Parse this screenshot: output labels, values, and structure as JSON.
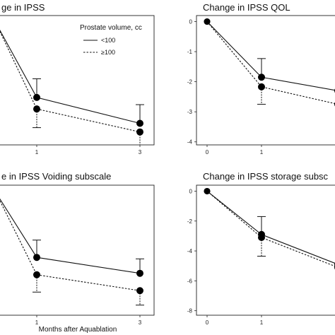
{
  "chart_data": [
    {
      "type": "line",
      "title": "ge in IPSS",
      "x": [
        0,
        1,
        3
      ],
      "xticks": [
        "1",
        "3"
      ],
      "yticks": [],
      "ylim": [
        -12.5,
        -3.5
      ],
      "series": [
        {
          "name": "<100",
          "style": "solid",
          "values": [
            -4.0,
            -9.2,
            -11.0
          ],
          "err": [
            null,
            1.3,
            1.3
          ]
        },
        {
          "name": "≥100",
          "style": "dashed",
          "values": [
            -4.0,
            -10.0,
            -11.6
          ],
          "err": [
            null,
            1.3,
            1.0
          ]
        }
      ],
      "legend": {
        "title": "Prostate volume, cc",
        "position": "top-right"
      },
      "grid": false
    },
    {
      "type": "line",
      "title": "Change in IPSS QOL",
      "x": [
        0,
        1,
        3
      ],
      "xticks": [
        "0",
        "1",
        "3"
      ],
      "yticks": [
        "0",
        "-1",
        "-2",
        "-3",
        "-4"
      ],
      "ylim": [
        -4.1,
        0.2
      ],
      "series": [
        {
          "name": "<100",
          "style": "solid",
          "values": [
            0,
            -1.85,
            -2.3
          ],
          "err": [
            null,
            0.62,
            null
          ]
        },
        {
          "name": "≥100",
          "style": "dashed",
          "values": [
            0,
            -2.17,
            -2.75
          ],
          "err": [
            null,
            0.58,
            null
          ]
        }
      ],
      "grid": false
    },
    {
      "type": "line",
      "title": "e in IPSS Voiding subscale",
      "xlabel": "Months after Aquablation",
      "x": [
        0,
        1,
        3
      ],
      "xticks": [
        "1",
        "3"
      ],
      "yticks": [],
      "ylim": [
        -9.5,
        -0.5
      ],
      "series": [
        {
          "name": "<100",
          "style": "solid",
          "values": [
            -1.0,
            -5.5,
            -6.6
          ],
          "err": [
            null,
            1.2,
            1.0
          ]
        },
        {
          "name": "≥100",
          "style": "dashed",
          "values": [
            -1.0,
            -6.7,
            -7.8
          ],
          "err": [
            null,
            1.2,
            1.0
          ]
        }
      ],
      "grid": false
    },
    {
      "type": "line",
      "title": "Change in IPSS storage subsc",
      "x": [
        0,
        1,
        3
      ],
      "xticks": [
        "0",
        "1",
        "3"
      ],
      "yticks": [
        "0",
        "-2",
        "-4",
        "-6",
        "-8"
      ],
      "ylim": [
        -8.3,
        0.4
      ],
      "series": [
        {
          "name": "<100",
          "style": "solid",
          "values": [
            0,
            -2.9,
            -4.9
          ],
          "err": [
            null,
            1.2,
            null
          ]
        },
        {
          "name": "≥100",
          "style": "dashed",
          "values": [
            0,
            -3.1,
            -5.1
          ],
          "err": [
            null,
            1.25,
            null
          ]
        }
      ],
      "grid": false
    }
  ]
}
